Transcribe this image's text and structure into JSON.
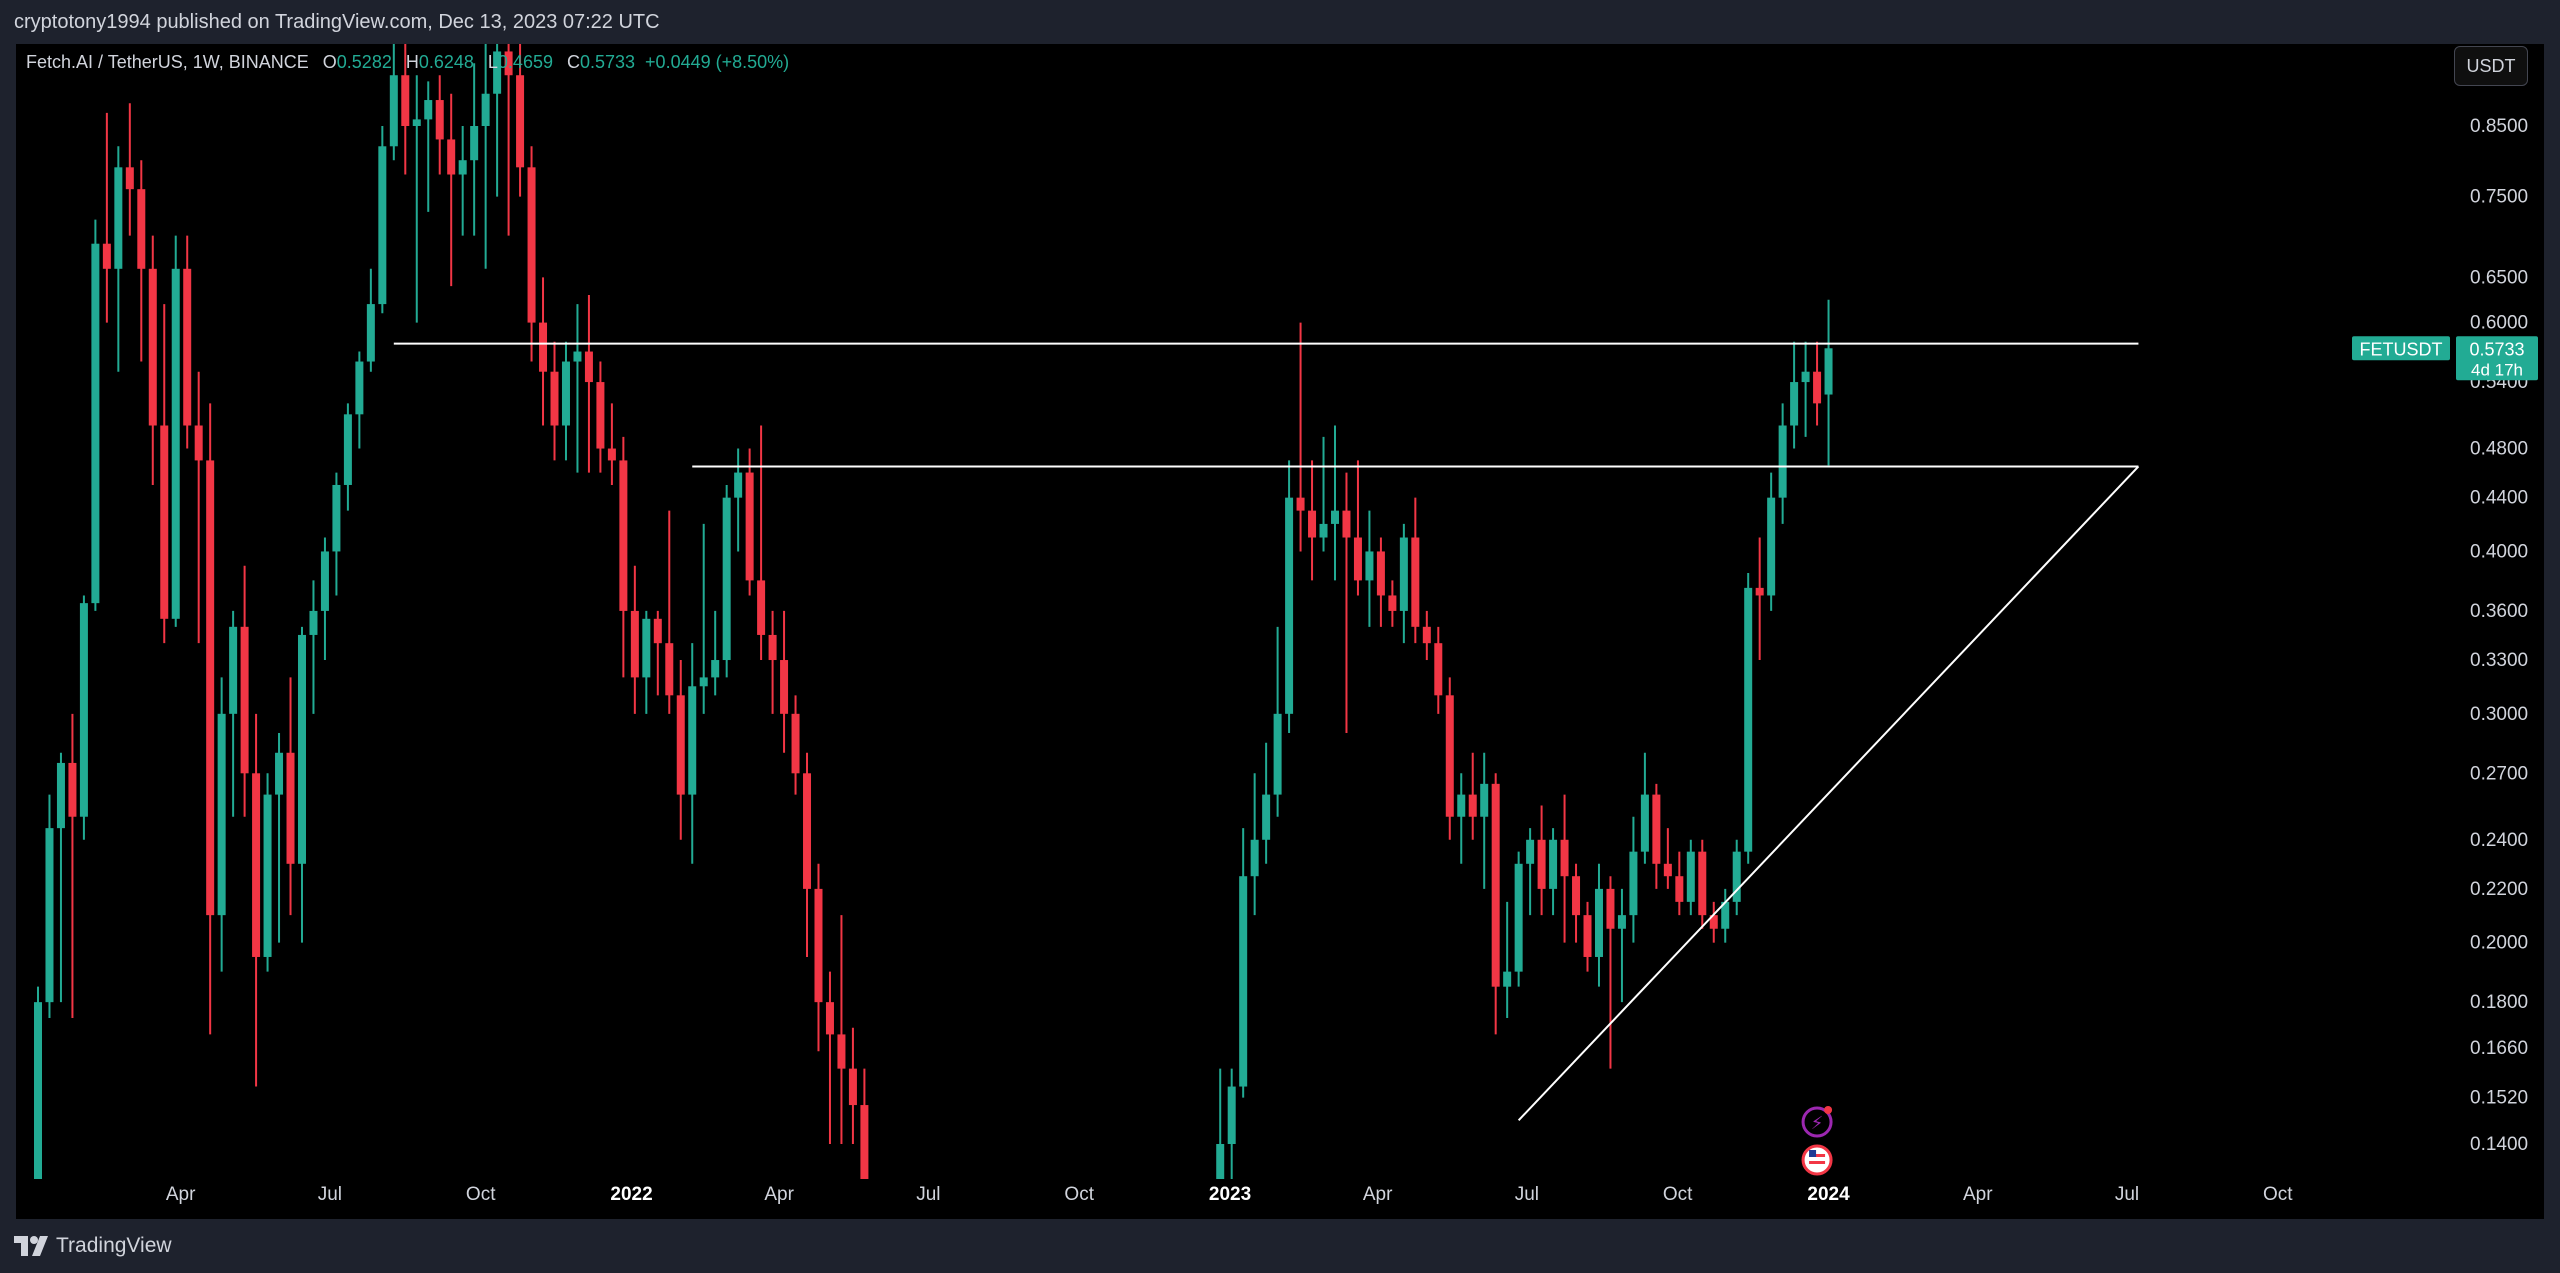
{
  "header": {
    "published_text": "cryptotony1994 published on TradingView.com, Dec 13, 2023 07:22 UTC"
  },
  "legend": {
    "symbol": "Fetch.AI / TetherUS, 1W, BINANCE",
    "open_label": "O",
    "open": "0.5282",
    "high_label": "H",
    "high": "0.6248",
    "low_label": "L",
    "low": "0.4659",
    "close_label": "C",
    "close": "0.5733",
    "change": "+0.0449 (+8.50%)"
  },
  "currency_button": "USDT",
  "ticker_tag": {
    "symbol": "FETUSDT",
    "price": "0.5733",
    "countdown": "4d 17h"
  },
  "footer": {
    "brand": "TradingView"
  },
  "colors": {
    "up": "#22ab94",
    "down": "#f23645",
    "background": "#000000",
    "frame": "#1e222d",
    "text": "#d1d4dc",
    "drawing_lines": "#ffffff"
  },
  "chart_data": {
    "type": "candlestick",
    "title": "Fetch.AI / TetherUS, 1W, BINANCE",
    "y_scale": "log",
    "y_ticks": [
      "0.8500",
      "0.7500",
      "0.6500",
      "0.6000",
      "0.5400",
      "0.4800",
      "0.4400",
      "0.4000",
      "0.3600",
      "0.3300",
      "0.3000",
      "0.2700",
      "0.2400",
      "0.2200",
      "0.2000",
      "0.1800",
      "0.1660",
      "0.1520",
      "0.1400"
    ],
    "x_ticks": [
      {
        "label": "Apr",
        "bold": false
      },
      {
        "label": "Jul",
        "bold": false
      },
      {
        "label": "Oct",
        "bold": false
      },
      {
        "label": "2022",
        "bold": true
      },
      {
        "label": "Apr",
        "bold": false
      },
      {
        "label": "Jul",
        "bold": false
      },
      {
        "label": "Oct",
        "bold": false
      },
      {
        "label": "2023",
        "bold": true
      },
      {
        "label": "Apr",
        "bold": false
      },
      {
        "label": "Jul",
        "bold": false
      },
      {
        "label": "Oct",
        "bold": false
      },
      {
        "label": "2024",
        "bold": true
      },
      {
        "label": "Apr",
        "bold": false
      },
      {
        "label": "Jul",
        "bold": false
      },
      {
        "label": "Oct",
        "bold": false
      }
    ],
    "x_start": "2021-01-04",
    "x_end": "2024-11-25",
    "ylim": [
      0.13,
      0.98
    ],
    "grid": false,
    "candles": [
      {
        "t": "2021-01-04",
        "o": 0.13,
        "h": 0.185,
        "l": 0.13,
        "c": 0.18
      },
      {
        "t": "2021-01-11",
        "o": 0.18,
        "h": 0.26,
        "l": 0.175,
        "c": 0.245
      },
      {
        "t": "2021-01-18",
        "o": 0.245,
        "h": 0.28,
        "l": 0.18,
        "c": 0.275
      },
      {
        "t": "2021-01-25",
        "o": 0.275,
        "h": 0.3,
        "l": 0.175,
        "c": 0.25
      },
      {
        "t": "2021-02-01",
        "o": 0.25,
        "h": 0.37,
        "l": 0.24,
        "c": 0.365
      },
      {
        "t": "2021-02-08",
        "o": 0.365,
        "h": 0.72,
        "l": 0.36,
        "c": 0.69
      },
      {
        "t": "2021-02-15",
        "o": 0.69,
        "h": 0.87,
        "l": 0.6,
        "c": 0.66
      },
      {
        "t": "2021-02-22",
        "o": 0.66,
        "h": 0.82,
        "l": 0.55,
        "c": 0.79
      },
      {
        "t": "2021-03-01",
        "o": 0.79,
        "h": 0.885,
        "l": 0.7,
        "c": 0.76
      },
      {
        "t": "2021-03-08",
        "o": 0.76,
        "h": 0.8,
        "l": 0.56,
        "c": 0.66
      },
      {
        "t": "2021-03-15",
        "o": 0.66,
        "h": 0.7,
        "l": 0.45,
        "c": 0.5
      },
      {
        "t": "2021-03-22",
        "o": 0.5,
        "h": 0.62,
        "l": 0.34,
        "c": 0.355
      },
      {
        "t": "2021-03-29",
        "o": 0.355,
        "h": 0.7,
        "l": 0.35,
        "c": 0.66
      },
      {
        "t": "2021-04-05",
        "o": 0.66,
        "h": 0.7,
        "l": 0.48,
        "c": 0.5
      },
      {
        "t": "2021-04-12",
        "o": 0.5,
        "h": 0.55,
        "l": 0.34,
        "c": 0.47
      },
      {
        "t": "2021-04-19",
        "o": 0.47,
        "h": 0.52,
        "l": 0.17,
        "c": 0.21
      },
      {
        "t": "2021-04-26",
        "o": 0.21,
        "h": 0.32,
        "l": 0.19,
        "c": 0.3
      },
      {
        "t": "2021-05-03",
        "o": 0.3,
        "h": 0.36,
        "l": 0.25,
        "c": 0.35
      },
      {
        "t": "2021-05-10",
        "o": 0.35,
        "h": 0.39,
        "l": 0.25,
        "c": 0.27
      },
      {
        "t": "2021-05-17",
        "o": 0.27,
        "h": 0.3,
        "l": 0.155,
        "c": 0.195
      },
      {
        "t": "2021-05-24",
        "o": 0.195,
        "h": 0.27,
        "l": 0.19,
        "c": 0.26
      },
      {
        "t": "2021-05-31",
        "o": 0.26,
        "h": 0.29,
        "l": 0.2,
        "c": 0.28
      },
      {
        "t": "2021-06-07",
        "o": 0.28,
        "h": 0.32,
        "l": 0.21,
        "c": 0.23
      },
      {
        "t": "2021-06-14",
        "o": 0.23,
        "h": 0.35,
        "l": 0.2,
        "c": 0.345
      },
      {
        "t": "2021-06-21",
        "o": 0.345,
        "h": 0.38,
        "l": 0.3,
        "c": 0.36
      },
      {
        "t": "2021-06-28",
        "o": 0.36,
        "h": 0.41,
        "l": 0.33,
        "c": 0.4
      },
      {
        "t": "2021-07-05",
        "o": 0.4,
        "h": 0.46,
        "l": 0.37,
        "c": 0.45
      },
      {
        "t": "2021-07-12",
        "o": 0.45,
        "h": 0.52,
        "l": 0.43,
        "c": 0.51
      },
      {
        "t": "2021-07-19",
        "o": 0.51,
        "h": 0.57,
        "l": 0.48,
        "c": 0.56
      },
      {
        "t": "2021-07-26",
        "o": 0.56,
        "h": 0.66,
        "l": 0.55,
        "c": 0.62
      },
      {
        "t": "2021-08-02",
        "o": 0.62,
        "h": 0.85,
        "l": 0.61,
        "c": 0.82
      },
      {
        "t": "2021-08-09",
        "o": 0.82,
        "h": 1.0,
        "l": 0.8,
        "c": 0.93
      },
      {
        "t": "2021-08-16",
        "o": 0.93,
        "h": 1.0,
        "l": 0.78,
        "c": 0.85
      },
      {
        "t": "2021-08-23",
        "o": 0.85,
        "h": 0.93,
        "l": 0.6,
        "c": 0.86
      },
      {
        "t": "2021-08-30",
        "o": 0.86,
        "h": 0.92,
        "l": 0.73,
        "c": 0.89
      },
      {
        "t": "2021-09-06",
        "o": 0.89,
        "h": 0.93,
        "l": 0.78,
        "c": 0.83
      },
      {
        "t": "2021-09-13",
        "o": 0.83,
        "h": 0.9,
        "l": 0.64,
        "c": 0.78
      },
      {
        "t": "2021-09-20",
        "o": 0.78,
        "h": 0.85,
        "l": 0.7,
        "c": 0.8
      },
      {
        "t": "2021-09-27",
        "o": 0.8,
        "h": 0.95,
        "l": 0.7,
        "c": 0.85
      },
      {
        "t": "2021-10-04",
        "o": 0.85,
        "h": 1.0,
        "l": 0.66,
        "c": 0.9
      },
      {
        "t": "2021-10-11",
        "o": 0.9,
        "h": 1.0,
        "l": 0.75,
        "c": 0.97
      },
      {
        "t": "2021-10-18",
        "o": 0.97,
        "h": 1.0,
        "l": 0.7,
        "c": 0.93
      },
      {
        "t": "2021-10-25",
        "o": 0.93,
        "h": 1.0,
        "l": 0.75,
        "c": 0.79
      },
      {
        "t": "2021-11-01",
        "o": 0.79,
        "h": 0.82,
        "l": 0.56,
        "c": 0.6
      },
      {
        "t": "2021-11-08",
        "o": 0.6,
        "h": 0.65,
        "l": 0.5,
        "c": 0.55
      },
      {
        "t": "2021-11-15",
        "o": 0.55,
        "h": 0.58,
        "l": 0.47,
        "c": 0.5
      },
      {
        "t": "2021-11-22",
        "o": 0.5,
        "h": 0.58,
        "l": 0.47,
        "c": 0.56
      },
      {
        "t": "2021-11-29",
        "o": 0.56,
        "h": 0.62,
        "l": 0.46,
        "c": 0.57
      },
      {
        "t": "2021-12-06",
        "o": 0.57,
        "h": 0.63,
        "l": 0.46,
        "c": 0.54
      },
      {
        "t": "2021-12-13",
        "o": 0.54,
        "h": 0.56,
        "l": 0.46,
        "c": 0.48
      },
      {
        "t": "2021-12-20",
        "o": 0.48,
        "h": 0.52,
        "l": 0.45,
        "c": 0.47
      },
      {
        "t": "2021-12-27",
        "o": 0.47,
        "h": 0.49,
        "l": 0.32,
        "c": 0.36
      },
      {
        "t": "2022-01-03",
        "o": 0.36,
        "h": 0.39,
        "l": 0.3,
        "c": 0.32
      },
      {
        "t": "2022-01-10",
        "o": 0.32,
        "h": 0.36,
        "l": 0.3,
        "c": 0.355
      },
      {
        "t": "2022-01-17",
        "o": 0.355,
        "h": 0.36,
        "l": 0.31,
        "c": 0.34
      },
      {
        "t": "2022-01-24",
        "o": 0.34,
        "h": 0.43,
        "l": 0.3,
        "c": 0.31
      },
      {
        "t": "2022-01-31",
        "o": 0.31,
        "h": 0.33,
        "l": 0.24,
        "c": 0.26
      },
      {
        "t": "2022-02-07",
        "o": 0.26,
        "h": 0.34,
        "l": 0.23,
        "c": 0.315
      },
      {
        "t": "2022-02-14",
        "o": 0.315,
        "h": 0.42,
        "l": 0.3,
        "c": 0.32
      },
      {
        "t": "2022-02-21",
        "o": 0.32,
        "h": 0.36,
        "l": 0.31,
        "c": 0.33
      },
      {
        "t": "2022-02-28",
        "o": 0.33,
        "h": 0.45,
        "l": 0.32,
        "c": 0.44
      },
      {
        "t": "2022-03-07",
        "o": 0.44,
        "h": 0.48,
        "l": 0.4,
        "c": 0.46
      },
      {
        "t": "2022-03-14",
        "o": 0.46,
        "h": 0.48,
        "l": 0.37,
        "c": 0.38
      },
      {
        "t": "2022-03-21",
        "o": 0.38,
        "h": 0.5,
        "l": 0.33,
        "c": 0.345
      },
      {
        "t": "2022-03-28",
        "o": 0.345,
        "h": 0.36,
        "l": 0.3,
        "c": 0.33
      },
      {
        "t": "2022-04-04",
        "o": 0.33,
        "h": 0.36,
        "l": 0.28,
        "c": 0.3
      },
      {
        "t": "2022-04-11",
        "o": 0.3,
        "h": 0.31,
        "l": 0.26,
        "c": 0.27
      },
      {
        "t": "2022-04-18",
        "o": 0.27,
        "h": 0.28,
        "l": 0.195,
        "c": 0.22
      },
      {
        "t": "2022-04-25",
        "o": 0.22,
        "h": 0.23,
        "l": 0.165,
        "c": 0.18
      },
      {
        "t": "2022-05-02",
        "o": 0.18,
        "h": 0.19,
        "l": 0.14,
        "c": 0.17
      },
      {
        "t": "2022-05-09",
        "o": 0.17,
        "h": 0.21,
        "l": 0.14,
        "c": 0.16
      },
      {
        "t": "2022-05-16",
        "o": 0.16,
        "h": 0.172,
        "l": 0.14,
        "c": 0.15
      },
      {
        "t": "2022-05-23",
        "o": 0.15,
        "h": 0.16,
        "l": 0.13,
        "c": 0.13
      },
      {
        "t": "2022-12-26",
        "o": 0.13,
        "h": 0.16,
        "l": 0.13,
        "c": 0.14
      },
      {
        "t": "2023-01-02",
        "o": 0.14,
        "h": 0.16,
        "l": 0.13,
        "c": 0.155
      },
      {
        "t": "2023-01-09",
        "o": 0.155,
        "h": 0.245,
        "l": 0.152,
        "c": 0.225
      },
      {
        "t": "2023-01-16",
        "o": 0.225,
        "h": 0.27,
        "l": 0.21,
        "c": 0.24
      },
      {
        "t": "2023-01-23",
        "o": 0.24,
        "h": 0.285,
        "l": 0.23,
        "c": 0.26
      },
      {
        "t": "2023-01-30",
        "o": 0.26,
        "h": 0.35,
        "l": 0.25,
        "c": 0.3
      },
      {
        "t": "2023-02-06",
        "o": 0.3,
        "h": 0.47,
        "l": 0.29,
        "c": 0.44
      },
      {
        "t": "2023-02-13",
        "o": 0.44,
        "h": 0.6,
        "l": 0.4,
        "c": 0.43
      },
      {
        "t": "2023-02-20",
        "o": 0.43,
        "h": 0.47,
        "l": 0.38,
        "c": 0.41
      },
      {
        "t": "2023-02-27",
        "o": 0.41,
        "h": 0.49,
        "l": 0.4,
        "c": 0.42
      },
      {
        "t": "2023-03-06",
        "o": 0.42,
        "h": 0.5,
        "l": 0.38,
        "c": 0.43
      },
      {
        "t": "2023-03-13",
        "o": 0.43,
        "h": 0.46,
        "l": 0.29,
        "c": 0.41
      },
      {
        "t": "2023-03-20",
        "o": 0.41,
        "h": 0.47,
        "l": 0.37,
        "c": 0.38
      },
      {
        "t": "2023-03-27",
        "o": 0.38,
        "h": 0.43,
        "l": 0.35,
        "c": 0.4
      },
      {
        "t": "2023-04-03",
        "o": 0.4,
        "h": 0.41,
        "l": 0.35,
        "c": 0.37
      },
      {
        "t": "2023-04-10",
        "o": 0.37,
        "h": 0.38,
        "l": 0.35,
        "c": 0.36
      },
      {
        "t": "2023-04-17",
        "o": 0.36,
        "h": 0.42,
        "l": 0.34,
        "c": 0.41
      },
      {
        "t": "2023-04-24",
        "o": 0.41,
        "h": 0.44,
        "l": 0.34,
        "c": 0.35
      },
      {
        "t": "2023-05-01",
        "o": 0.35,
        "h": 0.36,
        "l": 0.33,
        "c": 0.34
      },
      {
        "t": "2023-05-08",
        "o": 0.34,
        "h": 0.35,
        "l": 0.3,
        "c": 0.31
      },
      {
        "t": "2023-05-15",
        "o": 0.31,
        "h": 0.32,
        "l": 0.24,
        "c": 0.25
      },
      {
        "t": "2023-05-22",
        "o": 0.25,
        "h": 0.27,
        "l": 0.23,
        "c": 0.26
      },
      {
        "t": "2023-05-29",
        "o": 0.26,
        "h": 0.28,
        "l": 0.24,
        "c": 0.25
      },
      {
        "t": "2023-06-05",
        "o": 0.25,
        "h": 0.28,
        "l": 0.22,
        "c": 0.265
      },
      {
        "t": "2023-06-12",
        "o": 0.265,
        "h": 0.27,
        "l": 0.17,
        "c": 0.185
      },
      {
        "t": "2023-06-19",
        "o": 0.185,
        "h": 0.215,
        "l": 0.175,
        "c": 0.19
      },
      {
        "t": "2023-06-26",
        "o": 0.19,
        "h": 0.235,
        "l": 0.185,
        "c": 0.23
      },
      {
        "t": "2023-07-03",
        "o": 0.23,
        "h": 0.245,
        "l": 0.21,
        "c": 0.24
      },
      {
        "t": "2023-07-10",
        "o": 0.24,
        "h": 0.255,
        "l": 0.21,
        "c": 0.22
      },
      {
        "t": "2023-07-17",
        "o": 0.22,
        "h": 0.245,
        "l": 0.21,
        "c": 0.24
      },
      {
        "t": "2023-07-24",
        "o": 0.24,
        "h": 0.26,
        "l": 0.2,
        "c": 0.225
      },
      {
        "t": "2023-07-31",
        "o": 0.225,
        "h": 0.23,
        "l": 0.2,
        "c": 0.21
      },
      {
        "t": "2023-08-07",
        "o": 0.21,
        "h": 0.215,
        "l": 0.19,
        "c": 0.195
      },
      {
        "t": "2023-08-14",
        "o": 0.195,
        "h": 0.23,
        "l": 0.185,
        "c": 0.22
      },
      {
        "t": "2023-08-21",
        "o": 0.22,
        "h": 0.225,
        "l": 0.16,
        "c": 0.205
      },
      {
        "t": "2023-08-28",
        "o": 0.205,
        "h": 0.22,
        "l": 0.18,
        "c": 0.21
      },
      {
        "t": "2023-09-04",
        "o": 0.21,
        "h": 0.25,
        "l": 0.2,
        "c": 0.235
      },
      {
        "t": "2023-09-11",
        "o": 0.235,
        "h": 0.28,
        "l": 0.23,
        "c": 0.26
      },
      {
        "t": "2023-09-18",
        "o": 0.26,
        "h": 0.265,
        "l": 0.22,
        "c": 0.23
      },
      {
        "t": "2023-09-25",
        "o": 0.23,
        "h": 0.245,
        "l": 0.22,
        "c": 0.225
      },
      {
        "t": "2023-10-02",
        "o": 0.225,
        "h": 0.235,
        "l": 0.21,
        "c": 0.215
      },
      {
        "t": "2023-10-09",
        "o": 0.215,
        "h": 0.24,
        "l": 0.21,
        "c": 0.235
      },
      {
        "t": "2023-10-16",
        "o": 0.235,
        "h": 0.24,
        "l": 0.205,
        "c": 0.21
      },
      {
        "t": "2023-10-23",
        "o": 0.21,
        "h": 0.215,
        "l": 0.2,
        "c": 0.205
      },
      {
        "t": "2023-10-30",
        "o": 0.205,
        "h": 0.22,
        "l": 0.2,
        "c": 0.215
      },
      {
        "t": "2023-11-06",
        "o": 0.215,
        "h": 0.24,
        "l": 0.21,
        "c": 0.235
      },
      {
        "t": "2023-11-13",
        "o": 0.235,
        "h": 0.385,
        "l": 0.23,
        "c": 0.375
      },
      {
        "t": "2023-11-20",
        "o": 0.375,
        "h": 0.41,
        "l": 0.33,
        "c": 0.37
      },
      {
        "t": "2023-11-27",
        "o": 0.37,
        "h": 0.46,
        "l": 0.36,
        "c": 0.44
      },
      {
        "t": "2023-12-04",
        "o": 0.44,
        "h": 0.52,
        "l": 0.42,
        "c": 0.5
      },
      {
        "t": "2023-12-11",
        "o": 0.5,
        "h": 0.58,
        "l": 0.48,
        "c": 0.54
      },
      {
        "t": "2023-12-18",
        "o": 0.54,
        "h": 0.58,
        "l": 0.49,
        "c": 0.55
      },
      {
        "t": "2023-12-25",
        "o": 0.55,
        "h": 0.58,
        "l": 0.5,
        "c": 0.52
      },
      {
        "t": "2024-01-01",
        "o": 0.5282,
        "h": 0.6248,
        "l": 0.4659,
        "c": 0.5733
      }
    ],
    "drawings": [
      {
        "type": "horizontal-segment",
        "price": 0.578,
        "from": "2021-08-09",
        "to": "2024-07-08"
      },
      {
        "type": "horizontal-segment",
        "price": 0.465,
        "from": "2022-02-07",
        "to": "2024-07-08"
      },
      {
        "type": "trendline",
        "from": {
          "t": "2023-06-26",
          "p": 0.146
        },
        "to": {
          "t": "2024-07-08",
          "p": 0.465
        }
      }
    ]
  }
}
